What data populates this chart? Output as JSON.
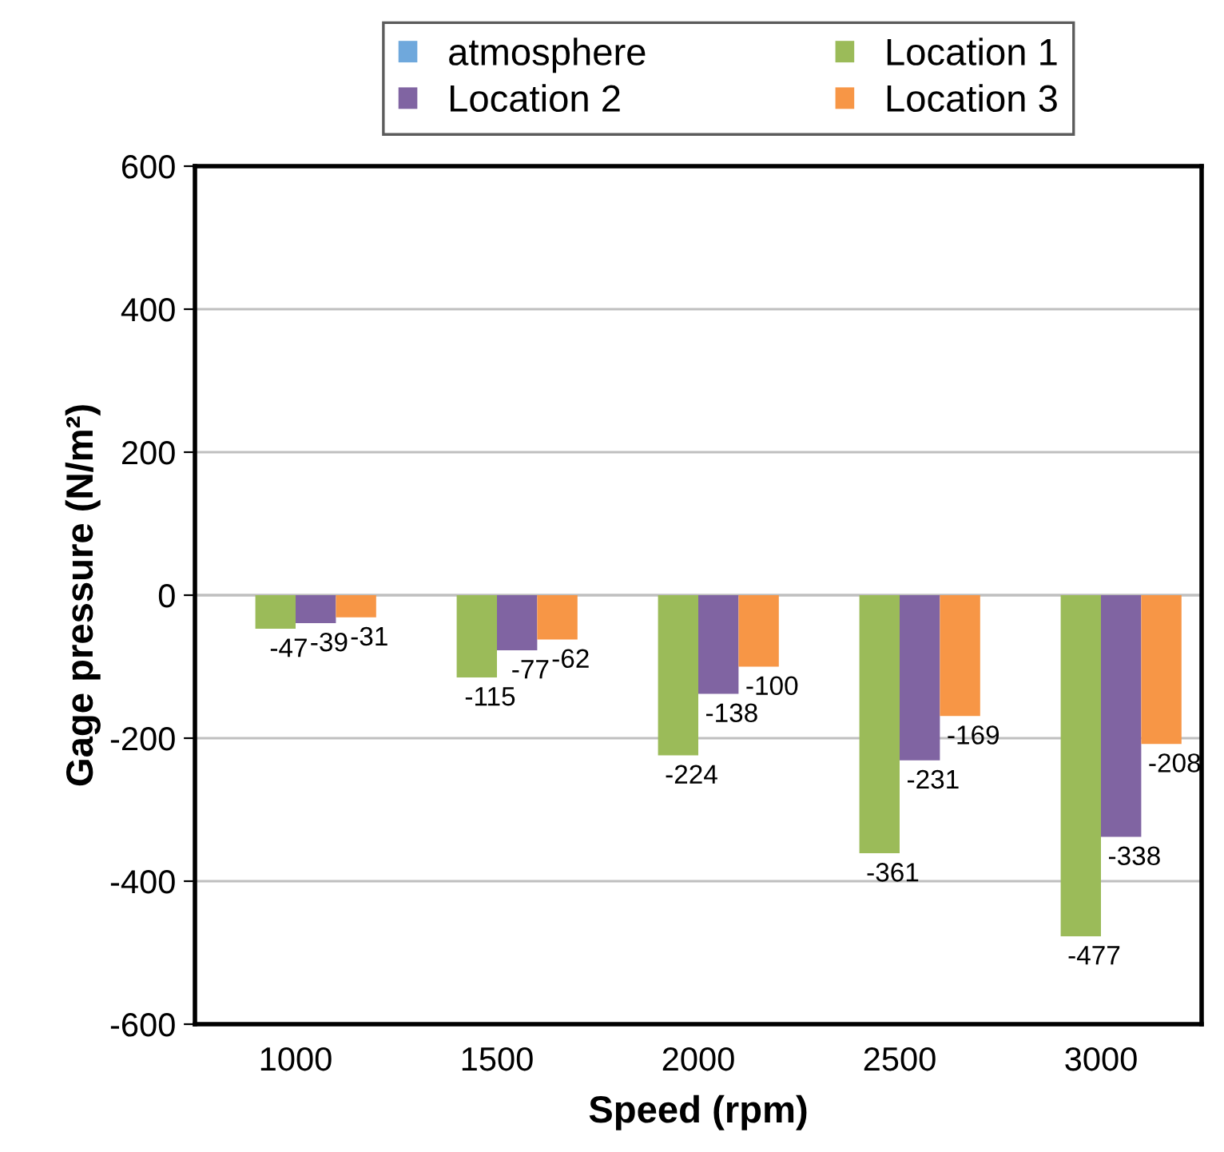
{
  "chart_data": {
    "type": "bar",
    "xlabel": "Speed (rpm)",
    "ylabel": "Gage pressure (N/m²)",
    "categories": [
      "1000",
      "1500",
      "2000",
      "2500",
      "3000"
    ],
    "series": [
      {
        "name": "atmosphere",
        "color": "#6fa8dc",
        "values": [
          0,
          0,
          0,
          0,
          0
        ]
      },
      {
        "name": "Location 1",
        "color": "#9bbb59",
        "values": [
          -47,
          -115,
          -224,
          -361,
          -477
        ],
        "value_labels": [
          "-47",
          "-115",
          "-224",
          "-361",
          "-477"
        ]
      },
      {
        "name": "Location 2",
        "color": "#8064a2",
        "values": [
          -39,
          -77,
          -138,
          -231,
          -338
        ],
        "value_labels": [
          "-39",
          "-77",
          "-138",
          "-231",
          "-338"
        ]
      },
      {
        "name": "Location 3",
        "color": "#f79646",
        "values": [
          -31,
          -62,
          -100,
          -169,
          -208
        ],
        "value_labels": [
          "-31",
          "-62",
          "-100",
          "-169",
          "-208"
        ]
      }
    ],
    "ylim": [
      -600,
      600
    ],
    "yticks": [
      -600,
      -400,
      -200,
      0,
      200,
      400,
      600
    ],
    "grid": "y",
    "legend": "top"
  }
}
